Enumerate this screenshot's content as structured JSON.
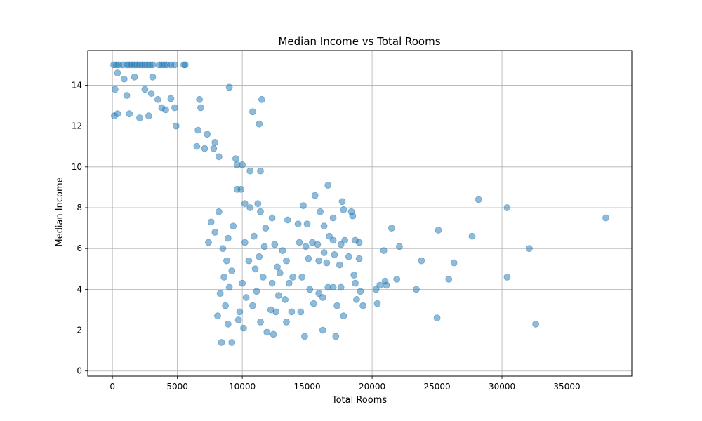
{
  "chart_data": {
    "type": "scatter",
    "title": "Median Income vs Total Rooms",
    "xlabel": "Total Rooms",
    "ylabel": "Median Income",
    "xlim": [
      -1900,
      40000
    ],
    "ylim": [
      -0.25,
      15.7
    ],
    "xticks": [
      0,
      5000,
      10000,
      15000,
      20000,
      25000,
      30000,
      35000
    ],
    "yticks": [
      0,
      2,
      4,
      6,
      8,
      10,
      12,
      14
    ],
    "grid": true,
    "point_color": "#1f77b4",
    "point_alpha": 0.5,
    "series": [
      {
        "points": [
          [
            100,
            15.0
          ],
          [
            300,
            15.0
          ],
          [
            500,
            15.0
          ],
          [
            800,
            15.0
          ],
          [
            1100,
            15.0
          ],
          [
            1300,
            15.0
          ],
          [
            1500,
            15.0
          ],
          [
            1700,
            15.0
          ],
          [
            1900,
            15.0
          ],
          [
            2100,
            15.0
          ],
          [
            2300,
            15.0
          ],
          [
            2500,
            15.0
          ],
          [
            2700,
            15.0
          ],
          [
            2900,
            15.0
          ],
          [
            3100,
            15.0
          ],
          [
            3600,
            15.0
          ],
          [
            3800,
            15.0
          ],
          [
            4000,
            15.0
          ],
          [
            4200,
            15.0
          ],
          [
            4500,
            15.0
          ],
          [
            4800,
            15.0
          ],
          [
            5500,
            15.0
          ],
          [
            5600,
            15.0
          ],
          [
            400,
            14.6
          ],
          [
            900,
            14.3
          ],
          [
            1700,
            14.4
          ],
          [
            3100,
            14.4
          ],
          [
            200,
            13.8
          ],
          [
            2500,
            13.8
          ],
          [
            3000,
            13.6
          ],
          [
            1100,
            13.5
          ],
          [
            3500,
            13.3
          ],
          [
            4500,
            13.35
          ],
          [
            6700,
            13.3
          ],
          [
            6800,
            12.9
          ],
          [
            9000,
            13.9
          ],
          [
            10800,
            12.7
          ],
          [
            11500,
            13.3
          ],
          [
            11300,
            12.1
          ],
          [
            150,
            12.5
          ],
          [
            400,
            12.6
          ],
          [
            1300,
            12.6
          ],
          [
            2100,
            12.4
          ],
          [
            2800,
            12.5
          ],
          [
            3800,
            12.9
          ],
          [
            4100,
            12.8
          ],
          [
            4800,
            12.9
          ],
          [
            4900,
            12.0
          ],
          [
            6600,
            11.8
          ],
          [
            7300,
            11.6
          ],
          [
            7900,
            11.2
          ],
          [
            6500,
            11.0
          ],
          [
            7100,
            10.9
          ],
          [
            7800,
            10.9
          ],
          [
            8200,
            10.5
          ],
          [
            9500,
            10.4
          ],
          [
            9600,
            10.1
          ],
          [
            10000,
            10.1
          ],
          [
            10600,
            9.8
          ],
          [
            11400,
            9.8
          ],
          [
            9600,
            8.9
          ],
          [
            9900,
            8.9
          ],
          [
            10200,
            8.2
          ],
          [
            10600,
            8.0
          ],
          [
            11200,
            8.2
          ],
          [
            11400,
            7.8
          ],
          [
            12300,
            7.5
          ],
          [
            11800,
            7.0
          ],
          [
            13500,
            7.4
          ],
          [
            14300,
            7.2
          ],
          [
            14700,
            8.1
          ],
          [
            15000,
            7.2
          ],
          [
            15600,
            8.6
          ],
          [
            16600,
            9.1
          ],
          [
            16000,
            7.8
          ],
          [
            16300,
            7.1
          ],
          [
            17000,
            7.5
          ],
          [
            17700,
            8.3
          ],
          [
            17800,
            7.9
          ],
          [
            18400,
            7.8
          ],
          [
            18500,
            7.6
          ],
          [
            14400,
            6.3
          ],
          [
            14900,
            6.1
          ],
          [
            15400,
            6.3
          ],
          [
            15800,
            6.2
          ],
          [
            16300,
            5.8
          ],
          [
            16700,
            6.6
          ],
          [
            17000,
            6.4
          ],
          [
            17600,
            6.2
          ],
          [
            17900,
            6.4
          ],
          [
            18700,
            6.4
          ],
          [
            19000,
            6.3
          ],
          [
            15100,
            5.5
          ],
          [
            15900,
            5.4
          ],
          [
            16500,
            5.3
          ],
          [
            17100,
            5.7
          ],
          [
            17500,
            5.2
          ],
          [
            18200,
            5.6
          ],
          [
            19000,
            5.5
          ],
          [
            18600,
            4.7
          ],
          [
            14600,
            4.6
          ],
          [
            15200,
            4.0
          ],
          [
            15900,
            3.8
          ],
          [
            16200,
            3.6
          ],
          [
            16600,
            4.1
          ],
          [
            17000,
            4.1
          ],
          [
            17600,
            4.1
          ],
          [
            18700,
            4.3
          ],
          [
            19100,
            3.9
          ],
          [
            19300,
            3.2
          ],
          [
            18800,
            3.5
          ],
          [
            15500,
            3.3
          ],
          [
            17300,
            3.2
          ],
          [
            17800,
            2.7
          ],
          [
            14500,
            2.9
          ],
          [
            14800,
            1.7
          ],
          [
            16200,
            2.0
          ],
          [
            17200,
            1.7
          ],
          [
            20600,
            4.2
          ],
          [
            21100,
            4.2
          ],
          [
            21000,
            4.4
          ],
          [
            20300,
            4.0
          ],
          [
            20400,
            3.3
          ],
          [
            21900,
            4.5
          ],
          [
            23400,
            4.0
          ],
          [
            20900,
            5.9
          ],
          [
            22100,
            6.1
          ],
          [
            21500,
            7.0
          ],
          [
            23800,
            5.4
          ],
          [
            25100,
            6.9
          ],
          [
            25900,
            4.5
          ],
          [
            26300,
            5.3
          ],
          [
            25000,
            2.6
          ],
          [
            27700,
            6.6
          ],
          [
            28200,
            8.4
          ],
          [
            30400,
            8.0
          ],
          [
            30400,
            4.6
          ],
          [
            32100,
            6.0
          ],
          [
            32600,
            2.3
          ],
          [
            38000,
            7.5
          ],
          [
            12500,
            6.2
          ],
          [
            13100,
            5.9
          ],
          [
            13400,
            5.4
          ],
          [
            12700,
            5.1
          ],
          [
            12900,
            4.8
          ],
          [
            12300,
            4.3
          ],
          [
            13600,
            4.3
          ],
          [
            12800,
            3.7
          ],
          [
            13300,
            3.5
          ],
          [
            12200,
            3.0
          ],
          [
            12600,
            2.9
          ],
          [
            13800,
            2.9
          ],
          [
            13900,
            4.6
          ],
          [
            13400,
            2.4
          ],
          [
            11900,
            1.9
          ],
          [
            12400,
            1.8
          ],
          [
            11400,
            2.4
          ],
          [
            10800,
            3.2
          ],
          [
            11100,
            3.9
          ],
          [
            11600,
            4.6
          ],
          [
            11000,
            5.0
          ],
          [
            11300,
            5.6
          ],
          [
            11700,
            6.1
          ],
          [
            10900,
            6.6
          ],
          [
            10200,
            6.3
          ],
          [
            10500,
            5.4
          ],
          [
            10000,
            4.3
          ],
          [
            10300,
            3.6
          ],
          [
            9800,
            2.9
          ],
          [
            10100,
            2.1
          ],
          [
            9200,
            1.4
          ],
          [
            9700,
            2.5
          ],
          [
            8400,
            1.4
          ],
          [
            8900,
            2.3
          ],
          [
            9300,
            7.1
          ],
          [
            8900,
            6.5
          ],
          [
            8500,
            6.0
          ],
          [
            8800,
            5.4
          ],
          [
            9200,
            4.9
          ],
          [
            8600,
            4.6
          ],
          [
            9000,
            4.1
          ],
          [
            8300,
            3.8
          ],
          [
            8700,
            3.2
          ],
          [
            8100,
            2.7
          ],
          [
            8200,
            7.8
          ],
          [
            7600,
            7.3
          ],
          [
            7900,
            6.8
          ],
          [
            7400,
            6.3
          ]
        ]
      }
    ]
  }
}
